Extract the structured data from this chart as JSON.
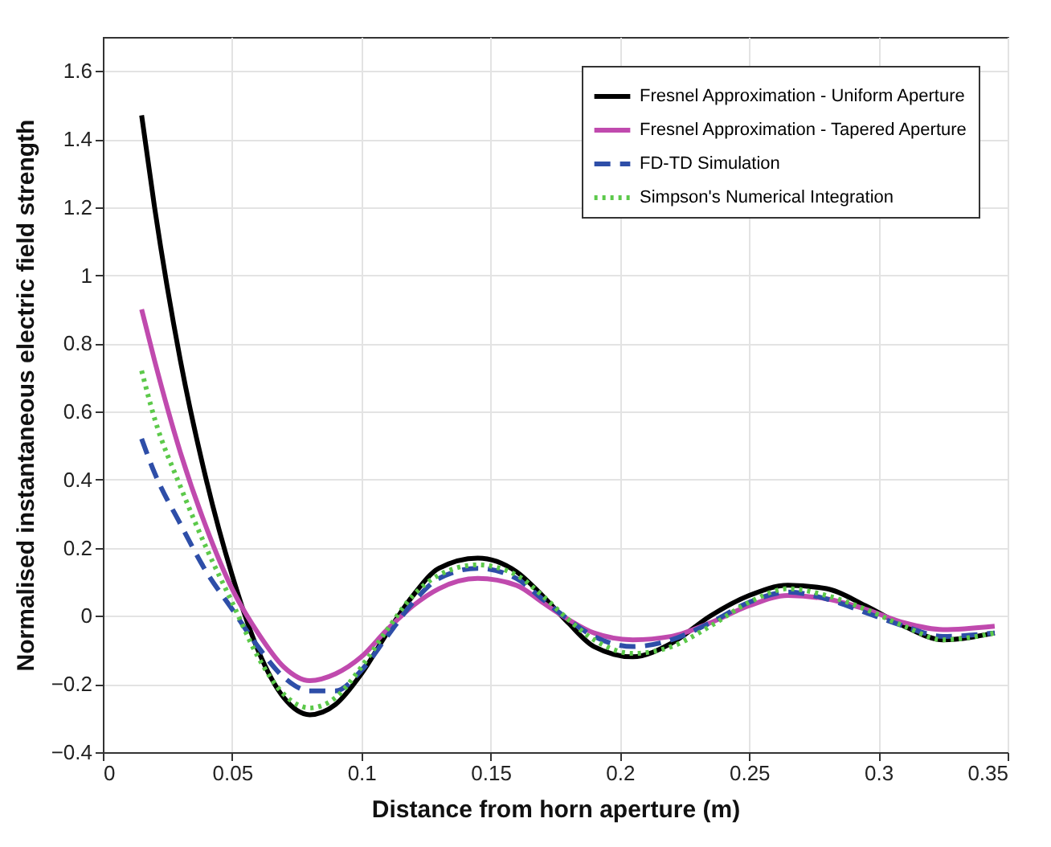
{
  "chart_data": {
    "type": "line",
    "xlabel": "Distance from horn aperture (m)",
    "ylabel": "Normalised instantaneous electric field strength",
    "xlim": [
      0,
      0.35
    ],
    "ylim": [
      -0.4,
      1.7
    ],
    "xticks": [
      0,
      0.05,
      0.1,
      0.15,
      0.2,
      0.25,
      0.3,
      0.35
    ],
    "yticks": [
      -0.4,
      -0.2,
      0,
      0.2,
      0.4,
      0.6,
      0.8,
      1,
      1.2,
      1.4,
      1.6
    ],
    "grid": true,
    "legend": "top right",
    "x": [
      0.015,
      0.02,
      0.03,
      0.04,
      0.05,
      0.06,
      0.07,
      0.08,
      0.09,
      0.1,
      0.11,
      0.12,
      0.13,
      0.145,
      0.16,
      0.17,
      0.18,
      0.19,
      0.205,
      0.22,
      0.235,
      0.25,
      0.265,
      0.28,
      0.295,
      0.31,
      0.325,
      0.345
    ],
    "series": [
      {
        "name": "Fresnel Approximation - Uniform Aperture",
        "color": "#000000",
        "line_style": "solid",
        "values": [
          1.47,
          1.2,
          0.75,
          0.4,
          0.12,
          -0.1,
          -0.24,
          -0.29,
          -0.26,
          -0.17,
          -0.05,
          0.06,
          0.14,
          0.17,
          0.13,
          0.06,
          -0.02,
          -0.09,
          -0.12,
          -0.08,
          0.0,
          0.06,
          0.09,
          0.08,
          0.03,
          -0.03,
          -0.07,
          -0.05
        ]
      },
      {
        "name": "Fresnel Approximation - Tapered Aperture",
        "color": "#c04aae",
        "line_style": "solid",
        "values": [
          0.9,
          0.75,
          0.48,
          0.26,
          0.08,
          -0.05,
          -0.15,
          -0.19,
          -0.17,
          -0.12,
          -0.04,
          0.03,
          0.08,
          0.11,
          0.09,
          0.04,
          -0.01,
          -0.05,
          -0.07,
          -0.06,
          -0.02,
          0.03,
          0.06,
          0.05,
          0.02,
          -0.02,
          -0.04,
          -0.03
        ]
      },
      {
        "name": "FD-TD Simulation",
        "color": "#2e4ea8",
        "line_style": "dashed",
        "values": [
          0.52,
          0.42,
          0.27,
          0.13,
          0.02,
          -0.09,
          -0.18,
          -0.22,
          -0.22,
          -0.16,
          -0.06,
          0.04,
          0.11,
          0.14,
          0.11,
          0.05,
          -0.01,
          -0.06,
          -0.09,
          -0.07,
          -0.02,
          0.04,
          0.07,
          0.05,
          0.01,
          -0.03,
          -0.06,
          -0.05
        ]
      },
      {
        "name": "Simpson's Numerical Integration",
        "color": "#5cc94a",
        "line_style": "dotted",
        "values": [
          0.72,
          0.58,
          0.38,
          0.2,
          0.04,
          -0.12,
          -0.23,
          -0.27,
          -0.24,
          -0.15,
          -0.04,
          0.06,
          0.12,
          0.15,
          0.12,
          0.06,
          -0.01,
          -0.07,
          -0.11,
          -0.09,
          -0.03,
          0.04,
          0.08,
          0.06,
          0.02,
          -0.03,
          -0.07,
          -0.05
        ]
      }
    ]
  }
}
